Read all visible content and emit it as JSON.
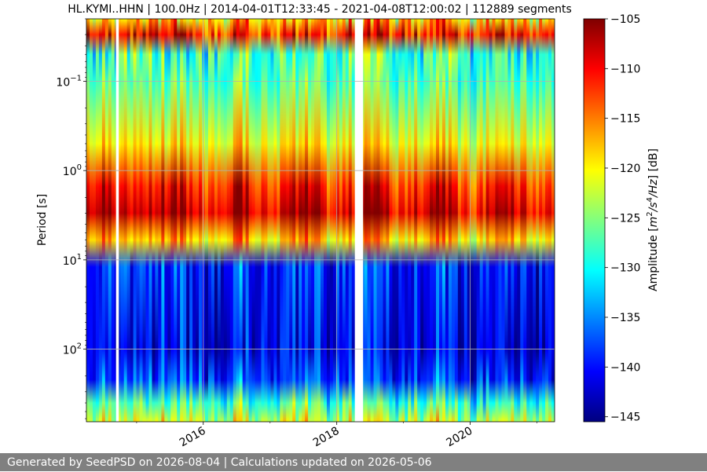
{
  "footer": {
    "text": "Generated by SeedPSD on 2026-08-04 | Calculations updated on 2026-05-06"
  },
  "chart_data": {
    "type": "heatmap",
    "title": "HL.KYMI..HHN | 100.0Hz | 2014-04-01T12:33:45 - 2021-04-08T12:00:02 | 112889 segments",
    "xlabel": "",
    "ylabel": "Period [s]",
    "x_axis": {
      "type": "date",
      "range": [
        "2014-04-01",
        "2021-04-08"
      ],
      "ticks": [
        "2016",
        "2018",
        "2020"
      ],
      "tick_dates": [
        "2016-01-01",
        "2018-01-01",
        "2020-01-01"
      ]
    },
    "y_axis": {
      "scale": "log",
      "inverted": true,
      "range": [
        0.02,
        650
      ],
      "ticks": [
        {
          "value": 0.1,
          "base": "10",
          "exp": "−1"
        },
        {
          "value": 1,
          "base": "10",
          "exp": "0"
        },
        {
          "value": 10,
          "base": "10",
          "exp": "1"
        },
        {
          "value": 100,
          "base": "10",
          "exp": "2"
        }
      ]
    },
    "grid": true,
    "gaps": [
      {
        "start": "2014-09-10",
        "end": "2014-09-25"
      },
      {
        "start": "2018-04-10",
        "end": "2018-05-25"
      }
    ],
    "colorbar": {
      "label": "Amplitude [m²/s⁴/Hz] [dB]",
      "label_main": "Amplitude [",
      "label_m": "m",
      "label_m_exp": "2",
      "label_slash1": "/",
      "label_s": "s",
      "label_s_exp": "4",
      "label_hz": "/Hz",
      "label_end": "] [dB]",
      "range": [
        -145.5,
        -105
      ],
      "ticks": [
        "−105",
        "−110",
        "−115",
        "−120",
        "−125",
        "−130",
        "−135",
        "−140",
        "−145"
      ],
      "tick_values": [
        -105,
        -110,
        -115,
        -120,
        -125,
        -130,
        -135,
        -140,
        -145
      ],
      "colormap": "jet"
    },
    "period_profile": [
      {
        "period": 0.02,
        "amplitude": -118
      },
      {
        "period": 0.03,
        "amplitude": -110
      },
      {
        "period": 0.05,
        "amplitude": -128
      },
      {
        "period": 0.1,
        "amplitude": -127
      },
      {
        "period": 0.5,
        "amplitude": -120
      },
      {
        "period": 1.5,
        "amplitude": -111
      },
      {
        "period": 3,
        "amplitude": -108
      },
      {
        "period": 6,
        "amplitude": -118
      },
      {
        "period": 12,
        "amplitude": -139
      },
      {
        "period": 100,
        "amplitude": -141
      },
      {
        "period": 220,
        "amplitude": -138
      },
      {
        "period": 400,
        "amplitude": -128
      },
      {
        "period": 650,
        "amplitude": -122
      }
    ]
  }
}
